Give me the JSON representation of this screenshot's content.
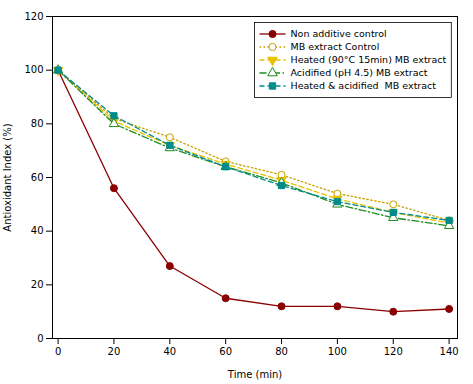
{
  "chart_data": {
    "type": "line",
    "x": [
      0,
      20,
      40,
      60,
      80,
      100,
      120,
      140
    ],
    "series": [
      {
        "name": "Non additive control",
        "color": "#8B0000",
        "values": [
          100,
          56,
          27,
          15,
          12,
          12,
          10,
          11
        ],
        "marker": "circle",
        "line_style": "solid"
      },
      {
        "name": "MB extract Control",
        "color": "#C8A000",
        "values": [
          100,
          82,
          75,
          66,
          61,
          54,
          50,
          44
        ],
        "marker": "circle_open",
        "line_style": "dotted"
      },
      {
        "name": "Heated (90°C 15min) MB extract",
        "color": "#E8C000",
        "values": [
          100,
          81,
          72,
          65,
          59,
          52,
          47,
          43
        ],
        "marker": "triangle_down",
        "line_style": "dashed"
      },
      {
        "name": "Acidified (pH 4.5) MB extract",
        "color": "#228B22",
        "values": [
          100,
          80,
          71,
          64,
          58,
          50,
          45,
          42
        ],
        "marker": "triangle_up_open",
        "line_style": "dashdot"
      },
      {
        "name": "Heated & acidified  MB extract",
        "color": "#008B8B",
        "values": [
          100,
          83,
          72,
          64,
          57,
          51,
          47,
          44
        ],
        "marker": "square",
        "line_style": "dashed"
      }
    ],
    "xlabel": "Time (min)",
    "ylabel": "Antioxidant Index (%)",
    "xlim": [
      -2,
      143
    ],
    "ylim": [
      0,
      120
    ],
    "xticks": [
      0,
      20,
      40,
      60,
      80,
      100,
      120,
      140
    ],
    "yticks": [
      0,
      20,
      40,
      60,
      80,
      100,
      120
    ],
    "grid": false,
    "legend": "upper right"
  }
}
